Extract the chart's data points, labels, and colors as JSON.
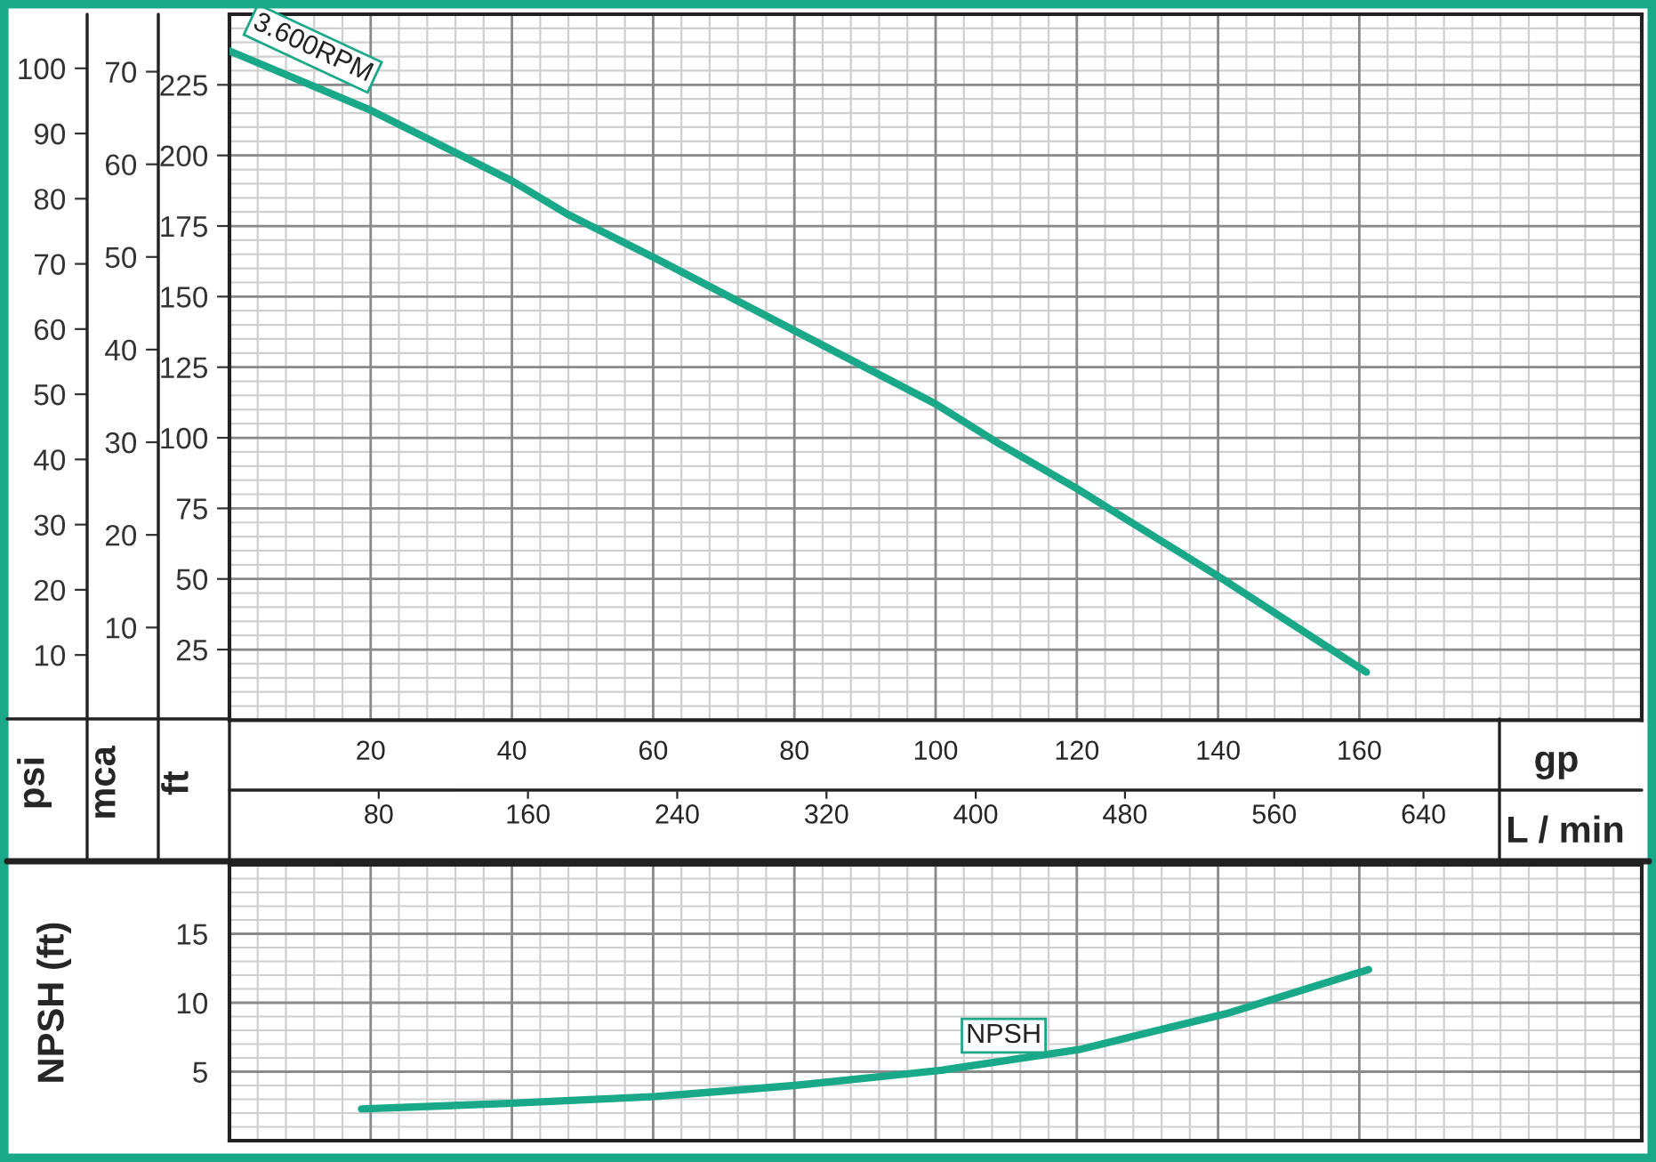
{
  "chart_data": [
    {
      "type": "line",
      "xlabel": "gp",
      "ylabel": "ft",
      "y2label": "psi",
      "y3label": "mca",
      "x2label": "L / min",
      "xlim": [
        0,
        200
      ],
      "xticks": [
        20,
        40,
        60,
        80,
        100,
        120,
        140,
        160
      ],
      "x2lim": [
        0,
        757
      ],
      "x2ticks": [
        80,
        160,
        240,
        320,
        400,
        480,
        560,
        640
      ],
      "ylim": [
        0,
        250
      ],
      "yticks": [
        25,
        50,
        75,
        100,
        125,
        150,
        175,
        200,
        225
      ],
      "y2lim": [
        0,
        108.3
      ],
      "y2ticks": [
        10,
        20,
        30,
        40,
        50,
        60,
        70,
        80,
        90,
        100
      ],
      "y3lim": [
        0,
        76.2
      ],
      "y3ticks": [
        10,
        20,
        30,
        40,
        50,
        60,
        70
      ],
      "grid": true,
      "series": [
        {
          "name": "3.600RPM",
          "color": "#1aa988",
          "x": [
            0,
            20,
            40,
            48,
            60,
            80,
            100,
            108.6,
            120,
            140,
            161
          ],
          "values": [
            237,
            216,
            191,
            179,
            164,
            138,
            112,
            98.5,
            82,
            51,
            17
          ]
        }
      ]
    },
    {
      "type": "line",
      "ylabel": "NPSH (ft)",
      "xlim": [
        0,
        200
      ],
      "xticks": [
        20,
        40,
        60,
        80,
        100,
        120,
        140,
        160
      ],
      "ylim": [
        0,
        20
      ],
      "yticks": [
        5,
        10,
        15
      ],
      "grid": true,
      "tick_labels": "y",
      "series": [
        {
          "name": "NPSH",
          "color": "#1aa988",
          "x": [
            18.7,
            39.5,
            60.4,
            80,
            100.8,
            120.3,
            141.1,
            161.3
          ],
          "values": [
            2.3,
            2.7,
            3.2,
            4.0,
            5.1,
            6.6,
            9.2,
            12.4
          ]
        }
      ]
    }
  ]
}
